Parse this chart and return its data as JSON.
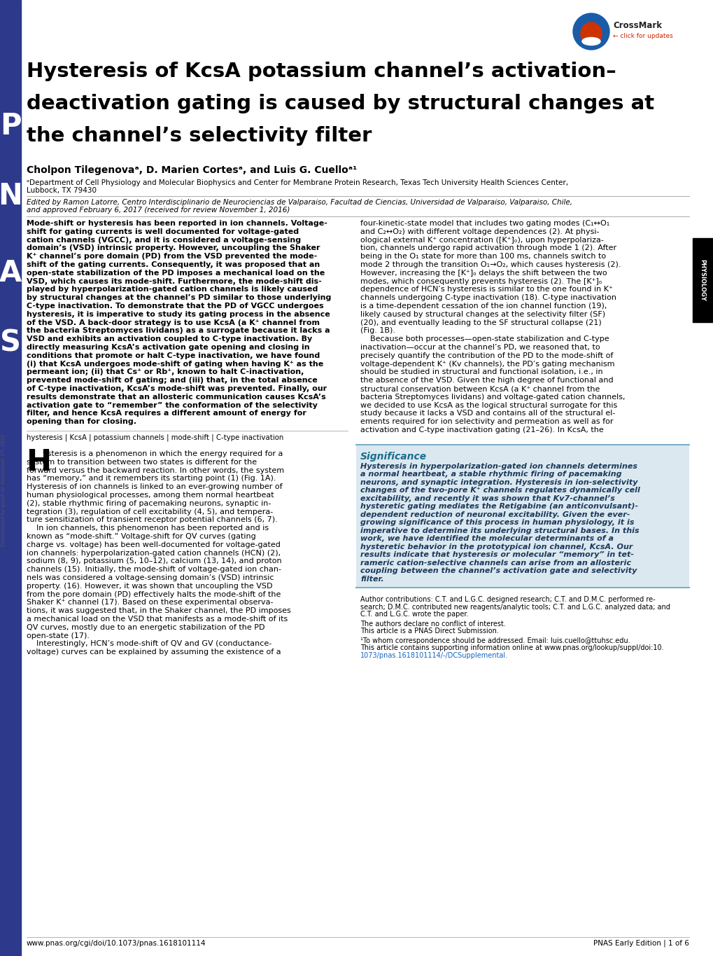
{
  "bg_color": "#ffffff",
  "left_bar_color": "#2d3a8c",
  "physiology_bar_color": "#000000",
  "crossmark_blue": "#1a5ca8",
  "crossmark_red": "#cc2200",
  "title_line1": "Hysteresis of KcsA potassium channel’s activation–",
  "title_line2": "deactivation gating is caused by structural changes at",
  "title_line3": "the channel’s selectivity filter",
  "authors": "Cholpon Tilegenovaᵃ, D. Marien Cortesᵃ, and Luis G. Cuelloᵃ¹",
  "affil1": "ᵃDepartment of Cell Physiology and Molecular Biophysics and Center for Membrane Protein Research, Texas Tech University Health Sciences Center,",
  "affil2": "Lubbock, TX 79430",
  "edited1": "Edited by Ramon Latorre, Centro Interdisciplinario de Neurociencias de Valparaiso, Facultad de Ciencias, Universidad de Valparaiso, Valparaiso, Chile,",
  "edited2": "and approved February 6, 2017 (received for review November 1, 2016)",
  "abs_left": [
    "Mode-shift or hysteresis has been reported in ion channels. Voltage-",
    "shift for gating currents is well documented for voltage-gated",
    "cation channels (VGCC), and it is considered a voltage-sensing",
    "domain’s (VSD) intrinsic property. However, uncoupling the Shaker",
    "K⁺ channel’s pore domain (PD) from the VSD prevented the mode-",
    "shift of the gating currents. Consequently, it was proposed that an",
    "open-state stabilization of the PD imposes a mechanical load on the",
    "VSD, which causes its mode-shift. Furthermore, the mode-shift dis-",
    "played by hyperpolarization-gated cation channels is likely caused",
    "by structural changes at the channel’s PD similar to those underlying",
    "C-type inactivation. To demonstrate that the PD of VGCC undergoes",
    "hysteresis, it is imperative to study its gating process in the absence",
    "of the VSD. A back-door strategy is to use KcsA (a K⁺ channel from",
    "the bacteria Streptomyces lividans) as a surrogate because it lacks a",
    "VSD and exhibits an activation coupled to C-type inactivation. By",
    "directly measuring KcsA’s activation gate opening and closing in",
    "conditions that promote or halt C-type inactivation, we have found",
    "(i) that KcsA undergoes mode-shift of gating when having K⁺ as the",
    "permeant ion; (ii) that Cs⁺ or Rb⁺, known to halt C-inactivation,",
    "prevented mode-shift of gating; and (iii) that, in the total absence",
    "of C-type inactivation, KcsA’s mode-shift was prevented. Finally, our",
    "results demonstrate that an allosteric communication causes KcsA’s",
    "activation gate to “remember” the conformation of the selectivity",
    "filter, and hence KcsA requires a different amount of energy for",
    "opening than for closing."
  ],
  "abs_right": [
    "four-kinetic-state model that includes two gating modes (C₁↔O₁",
    "and C₂↔O₂) with different voltage dependences (2). At physi-",
    "ological external K⁺ concentration ([K⁺]ₒ), upon hyperpolariza-",
    "tion, channels undergo rapid activation through mode 1 (2). After",
    "being in the O₁ state for more than 100 ms, channels switch to",
    "mode 2 through the transition O₁→O₂, which causes hysteresis (2).",
    "However, increasing the [K⁺]ₒ delays the shift between the two",
    "modes, which consequently prevents hysteresis (2). The [K⁺]ₒ",
    "dependence of HCN’s hysteresis is similar to the one found in K⁺",
    "channels undergoing C-type inactivation (18). C-type inactivation",
    "is a time-dependent cessation of the ion channel function (19),",
    "likely caused by structural changes at the selectivity filter (SF)",
    "(20), and eventually leading to the SF structural collapse (21)",
    "(Fig. 1B).",
    "    Because both processes—open-state stabilization and C-type",
    "inactivation—occur at the channel’s PD, we reasoned that, to",
    "precisely quantify the contribution of the PD to the mode-shift of",
    "voltage-dependent K⁺ (Kv channels), the PD’s gating mechanism",
    "should be studied in structural and functional isolation, i.e., in",
    "the absence of the VSD. Given the high degree of functional and",
    "structural conservation between KcsA (a K⁺ channel from the",
    "bacteria Streptomyces lividans) and voltage-gated cation channels,",
    "we decided to use KcsA as the logical structural surrogate for this",
    "study because it lacks a VSD and contains all of the structural el-",
    "ements required for ion selectivity and permeation as well as for",
    "activation and C-type inactivation gating (21–26). In KcsA, the"
  ],
  "keywords": "hysteresis | KcsA | potassium channels | mode-shift | C-type inactivation",
  "body_left": [
    "ysteresis is a phenomenon in which the energy required for a",
    "system to transition between two states is different for the",
    "forward versus the backward reaction. In other words, the system",
    "has “memory,” and it remembers its starting point (1) (Fig. 1A).",
    "Hysteresis of ion channels is linked to an ever-growing number of",
    "human physiological processes, among them normal heartbeat",
    "(2), stable rhythmic firing of pacemaking neurons, synaptic in-",
    "tegration (3), regulation of cell excitability (4, 5), and tempera-",
    "ture sensitization of transient receptor potential channels (6, 7).",
    "    In ion channels, this phenomenon has been reported and is",
    "known as “mode-shift.” Voltage-shift for QV curves (gating",
    "charge vs. voltage) has been well-documented for voltage-gated",
    "ion channels: hyperpolarization-gated cation channels (HCN) (2),",
    "sodium (8, 9), potassium (5, 10–12), calcium (13, 14), and proton",
    "channels (15). Initially, the mode-shift of voltage-gated ion chan-",
    "nels was considered a voltage-sensing domain’s (VSD) intrinsic",
    "property. (16). However, it was shown that uncoupling the VSD",
    "from the pore domain (PD) effectively halts the mode-shift of the",
    "Shaker K⁺ channel (17). Based on these experimental observa-",
    "tions, it was suggested that, in the Shaker channel, the PD imposes",
    "a mechanical load on the VSD that manifests as a mode-shift of its",
    "QV curves, mostly due to an energetic stabilization of the PD",
    "open-state (17).",
    "    Interestingly, HCN’s mode-shift of QV and GV (conductance-",
    "voltage) curves can be explained by assuming the existence of a"
  ],
  "sig_title": "Significance",
  "sig_lines": [
    "Hysteresis in hyperpolarization-gated ion channels determines",
    "a normal heartbeat, a stable rhythmic firing of pacemaking",
    "neurons, and synaptic integration. Hysteresis in ion-selectivity",
    "changes of the two-pore K⁺ channels regulates dynamically cell",
    "excitability, and recently it was shown that Kv7-channel’s",
    "hysteretic gating mediates the Retigabine (an anticonvulsant)-",
    "dependent reduction of neuronal excitability. Given the ever-",
    "growing significance of this process in human physiology, it is",
    "imperative to determine its underlying structural bases. In this",
    "work, we have identified the molecular determinants of a",
    "hysteretic behavior in the prototypical ion channel, KcsA. Our",
    "results indicate that hysteresis or molecular “memory” in tet-",
    "rameric cation-selective channels can arise from an allosteric",
    "coupling between the channel’s activation gate and selectivity",
    "filter."
  ],
  "sig_bg": "#dce8f0",
  "sig_border": "#7bafc8",
  "sig_title_color": "#1a6e8e",
  "sig_text_color": "#1a3a5c",
  "foot_contrib1": "Author contributions: C.T. and L.G.C. designed research; C.T. and D.M.C. performed re-",
  "foot_contrib2": "search; D.M.C. contributed new reagents/analytic tools; C.T. and L.G.C. analyzed data; and",
  "foot_contrib3": "C.T. and L.G.C. wrote the paper.",
  "foot_conflict": "The authors declare no conflict of interest.",
  "foot_direct": "This article is a PNAS Direct Submission.",
  "foot_corr": "¹To whom correspondence should be addressed. Email: luis.cuello@ttuhsc.edu.",
  "foot_supp1": "This article contains supporting information online at www.pnas.org/lookup/suppl/doi:10.",
  "foot_supp2": "1073/pnas.1618101114/-/DCSupplemental.",
  "foot_supp2_color": "#1565c0",
  "footer_left": "www.pnas.org/cgi/doi/10.1073/pnas.1618101114",
  "footer_right": "PNAS Early Edition | 1 of 6",
  "pnas_letters": [
    "P",
    "N",
    "A",
    "S"
  ],
  "downloaded_text": "Downloaded by guest on September 27, 2021"
}
